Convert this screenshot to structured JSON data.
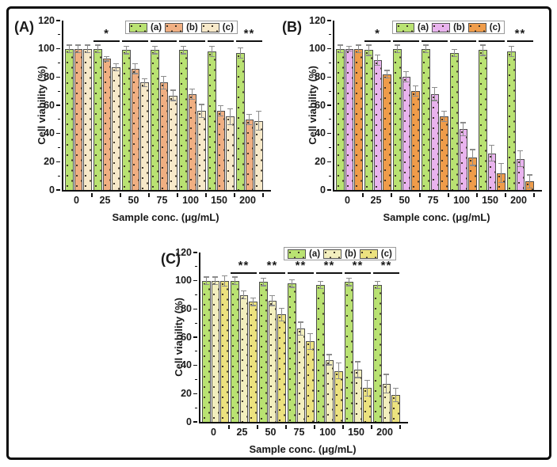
{
  "figure": {
    "background": "#ffffff",
    "border_color": "#0d0d0d",
    "axis_color": "#111111",
    "bar_outline_color": "#4e4e4e",
    "dot_pattern_color": "#3d3326",
    "error_bar_color": "#8c8c8c",
    "significance_line_level": 106
  },
  "chart_data": [
    {
      "type": "bar",
      "panel_label": "(A)",
      "xlabel": "Sample conc. (μg/mL)",
      "ylabel": "Cell viability (%)",
      "ylim": [
        0,
        120
      ],
      "yticks": [
        0,
        20,
        40,
        60,
        80,
        100,
        120
      ],
      "grid": false,
      "legend_position": "top",
      "categories": [
        "0",
        "25",
        "50",
        "75",
        "100",
        "150",
        "200"
      ],
      "series": [
        {
          "name": "(a)",
          "color": "#b9e272",
          "pattern": "dots",
          "values": [
            100,
            100,
            99,
            99,
            99,
            98,
            97
          ],
          "errors": [
            3,
            3,
            3,
            3,
            3,
            4,
            4
          ]
        },
        {
          "name": "(b)",
          "color": "#f0af82",
          "pattern": "dots",
          "values": [
            100,
            93,
            86,
            76,
            68,
            56,
            50
          ],
          "errors": [
            3,
            2,
            4,
            5,
            4,
            4,
            4
          ]
        },
        {
          "name": "(c)",
          "color": "#f7e9c9",
          "pattern": "dots",
          "values": [
            100,
            87,
            76,
            67,
            56,
            52,
            49
          ],
          "errors": [
            3,
            3,
            3,
            4,
            5,
            6,
            7
          ]
        }
      ],
      "significance": [
        "",
        "*",
        "*",
        "*",
        "**",
        "**",
        "**"
      ]
    },
    {
      "type": "bar",
      "panel_label": "(B)",
      "xlabel": "Sample conc. (μg/mL)",
      "ylabel": "Cell viability (%)",
      "ylim": [
        0,
        120
      ],
      "yticks": [
        0,
        20,
        40,
        60,
        80,
        100,
        120
      ],
      "grid": false,
      "legend_position": "top",
      "categories": [
        "0",
        "25",
        "50",
        "75",
        "100",
        "150",
        "200"
      ],
      "series": [
        {
          "name": "(a)",
          "color": "#b9e272",
          "pattern": "dots",
          "values": [
            100,
            99,
            100,
            100,
            97,
            99,
            98
          ],
          "errors": [
            3,
            4,
            3,
            3,
            3,
            4,
            4
          ]
        },
        {
          "name": "(b)",
          "color": "#e9b3ee",
          "pattern": "dots",
          "values": [
            100,
            92,
            80,
            68,
            43,
            26,
            22
          ],
          "errors": [
            2,
            4,
            4,
            5,
            5,
            6,
            6
          ]
        },
        {
          "name": "(c)",
          "color": "#ef9c4a",
          "pattern": "dots",
          "values": [
            100,
            82,
            70,
            52,
            23,
            12,
            6
          ],
          "errors": [
            3,
            3,
            4,
            4,
            6,
            7,
            5
          ]
        }
      ],
      "significance": [
        "",
        "*",
        "*",
        "**",
        "**",
        "**",
        "**"
      ]
    },
    {
      "type": "bar",
      "panel_label": "(C)",
      "xlabel": "Sample conc. (μg/mL)",
      "ylabel": "Cell viability (%)",
      "ylim": [
        0,
        120
      ],
      "yticks": [
        0,
        20,
        40,
        60,
        80,
        100,
        120
      ],
      "grid": false,
      "legend_position": "top",
      "categories": [
        "0",
        "25",
        "50",
        "75",
        "100",
        "150",
        "200"
      ],
      "series": [
        {
          "name": "(a)",
          "color": "#b9e272",
          "pattern": "dots",
          "values": [
            100,
            100,
            99,
            98,
            97,
            99,
            97
          ],
          "errors": [
            3,
            3,
            3,
            3,
            3,
            3,
            3
          ]
        },
        {
          "name": "(b)",
          "color": "#f3efbe",
          "pattern": "dots",
          "values": [
            100,
            90,
            86,
            66,
            44,
            37,
            27
          ],
          "errors": [
            3,
            3,
            4,
            5,
            4,
            6,
            7
          ]
        },
        {
          "name": "(c)",
          "color": "#ece27f",
          "pattern": "dots",
          "values": [
            100,
            85,
            76,
            57,
            36,
            24,
            19
          ],
          "errors": [
            4,
            3,
            5,
            6,
            6,
            6,
            5
          ]
        }
      ],
      "significance": [
        "",
        "**",
        "**",
        "**",
        "**",
        "**",
        "**"
      ]
    }
  ]
}
